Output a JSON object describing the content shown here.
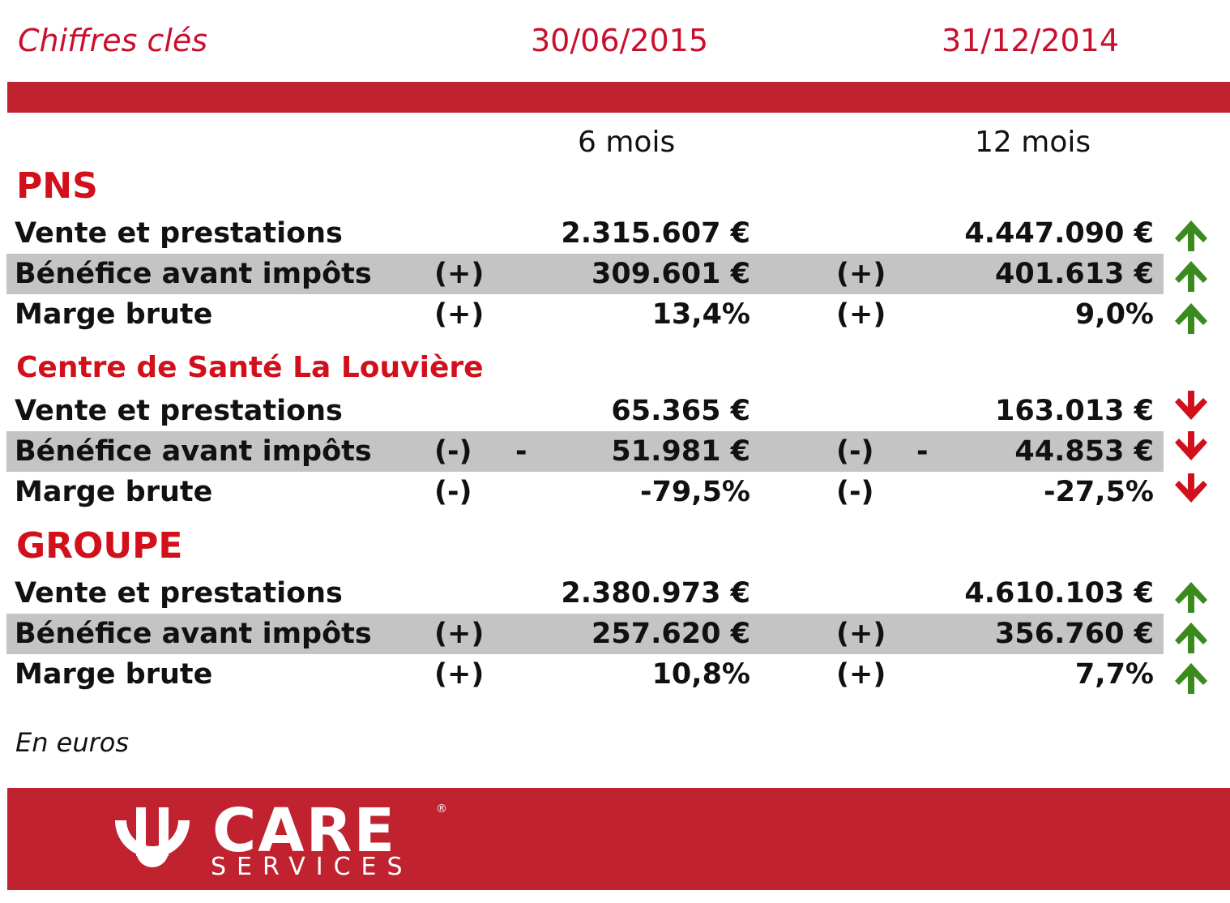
{
  "header": {
    "title": "Chiffres clés",
    "date1": "30/06/2015",
    "date2": "31/12/2014"
  },
  "periods": {
    "p1": "6 mois",
    "p2": "12 mois"
  },
  "colors": {
    "brand_red": "#c0232f",
    "title_red": "#d2101b",
    "up_green": "#3a8a1e",
    "down_red": "#d2101b",
    "row_shade": "#c4c4c4"
  },
  "sections": [
    {
      "title": "PNS",
      "rows": [
        {
          "label": "Vente et prestations",
          "sign1": "",
          "minus1": "",
          "val1": "2.315.607 €",
          "sign2": "",
          "minus2": "",
          "val2": "4.447.090 €",
          "trend": "up-arrow"
        },
        {
          "label": "Bénéfice avant impôts",
          "sign1": "(+)",
          "minus1": "",
          "val1": "309.601 €",
          "sign2": "(+)",
          "minus2": "",
          "val2": "401.613 €",
          "trend": "up-arrow"
        },
        {
          "label": "Marge brute",
          "sign1": "(+)",
          "minus1": "",
          "val1": "13,4%",
          "sign2": "(+)",
          "minus2": "",
          "val2": "9,0%",
          "trend": "up-arrow"
        }
      ]
    },
    {
      "title": "Centre de Santé La Louvière",
      "rows": [
        {
          "label": "Vente et prestations",
          "sign1": "",
          "minus1": "",
          "val1": "65.365 €",
          "sign2": "",
          "minus2": "",
          "val2": "163.013 €",
          "trend": "down-arrow"
        },
        {
          "label": "Bénéfice avant impôts",
          "sign1": "(-)",
          "minus1": "-",
          "val1": "51.981 €",
          "sign2": "(-)",
          "minus2": "-",
          "val2": "44.853 €",
          "trend": "down-arrow"
        },
        {
          "label": "Marge brute",
          "sign1": "(-)",
          "minus1": "",
          "val1": "-79,5%",
          "sign2": "(-)",
          "minus2": "",
          "val2": "-27,5%",
          "trend": "down-arrow"
        }
      ]
    },
    {
      "title": "GROUPE",
      "rows": [
        {
          "label": "Vente et prestations",
          "sign1": "",
          "minus1": "",
          "val1": "2.380.973 €",
          "sign2": "",
          "minus2": "",
          "val2": "4.610.103 €",
          "trend": "up-arrow"
        },
        {
          "label": "Bénéfice avant impôts",
          "sign1": "(+)",
          "minus1": "",
          "val1": "257.620 €",
          "sign2": "(+)",
          "minus2": "",
          "val2": "356.760 €",
          "trend": "up-arrow"
        },
        {
          "label": "Marge brute",
          "sign1": "(+)",
          "minus1": "",
          "val1": "10,8%",
          "sign2": "(+)",
          "minus2": "",
          "val2": "7,7%",
          "trend": "up-arrow"
        }
      ]
    }
  ],
  "footnote": "En euros",
  "logo": {
    "wordmark": "CARE",
    "subtitle": "SERVICES",
    "registered": "®",
    "icon": "ucare-logo-icon"
  }
}
